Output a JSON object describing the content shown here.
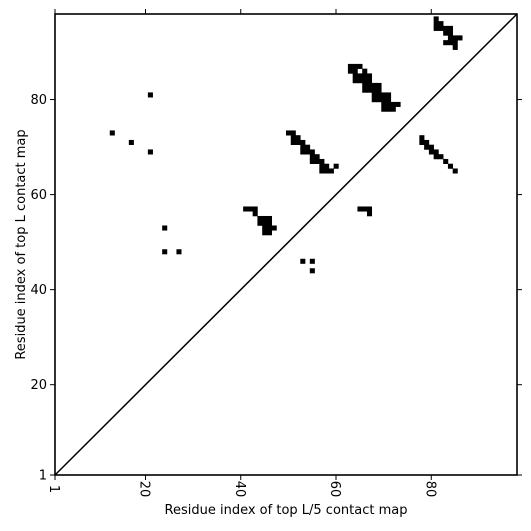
{
  "chart_data": {
    "type": "heatmap",
    "xlabel": "Residue index of top L/5 contact map",
    "ylabel": "Residue index of top L contact map",
    "xlim": [
      1,
      98
    ],
    "ylim": [
      1,
      98
    ],
    "xticks": [
      1,
      20,
      40,
      60,
      80
    ],
    "yticks": [
      1,
      20,
      40,
      60,
      80
    ],
    "diagonal": true,
    "grid": false,
    "cell_color": "#000000",
    "contacts": [
      [
        21,
        81
      ],
      [
        13,
        73
      ],
      [
        17,
        71
      ],
      [
        21,
        69
      ],
      [
        24,
        53
      ],
      [
        24,
        48
      ],
      [
        27,
        48
      ],
      [
        41,
        57
      ],
      [
        42,
        57
      ],
      [
        43,
        57
      ],
      [
        43,
        56
      ],
      [
        44,
        55
      ],
      [
        45,
        55
      ],
      [
        46,
        55
      ],
      [
        44,
        54
      ],
      [
        45,
        54
      ],
      [
        46,
        54
      ],
      [
        45,
        53
      ],
      [
        46,
        53
      ],
      [
        47,
        53
      ],
      [
        45,
        52
      ],
      [
        46,
        52
      ],
      [
        53,
        46
      ],
      [
        55,
        46
      ],
      [
        55,
        44
      ],
      [
        50,
        73
      ],
      [
        51,
        73
      ],
      [
        51,
        72
      ],
      [
        52,
        72
      ],
      [
        51,
        71
      ],
      [
        52,
        71
      ],
      [
        53,
        71
      ],
      [
        53,
        70
      ],
      [
        54,
        70
      ],
      [
        53,
        69
      ],
      [
        54,
        69
      ],
      [
        55,
        69
      ],
      [
        55,
        68
      ],
      [
        56,
        68
      ],
      [
        55,
        67
      ],
      [
        56,
        67
      ],
      [
        57,
        67
      ],
      [
        57,
        66
      ],
      [
        58,
        66
      ],
      [
        60,
        66
      ],
      [
        57,
        65
      ],
      [
        58,
        65
      ],
      [
        59,
        65
      ],
      [
        63,
        87
      ],
      [
        64,
        87
      ],
      [
        65,
        87
      ],
      [
        63,
        86
      ],
      [
        64,
        86
      ],
      [
        66,
        86
      ],
      [
        64,
        85
      ],
      [
        65,
        85
      ],
      [
        66,
        85
      ],
      [
        67,
        85
      ],
      [
        64,
        84
      ],
      [
        65,
        84
      ],
      [
        66,
        84
      ],
      [
        67,
        84
      ],
      [
        66,
        83
      ],
      [
        67,
        83
      ],
      [
        68,
        83
      ],
      [
        69,
        83
      ],
      [
        66,
        82
      ],
      [
        67,
        82
      ],
      [
        68,
        82
      ],
      [
        69,
        82
      ],
      [
        68,
        81
      ],
      [
        69,
        81
      ],
      [
        70,
        81
      ],
      [
        71,
        81
      ],
      [
        68,
        80
      ],
      [
        69,
        80
      ],
      [
        70,
        80
      ],
      [
        71,
        80
      ],
      [
        70,
        79
      ],
      [
        71,
        79
      ],
      [
        72,
        79
      ],
      [
        73,
        79
      ],
      [
        70,
        78
      ],
      [
        71,
        78
      ],
      [
        72,
        78
      ],
      [
        65,
        57
      ],
      [
        66,
        57
      ],
      [
        67,
        57
      ],
      [
        67,
        56
      ],
      [
        78,
        72
      ],
      [
        78,
        71
      ],
      [
        79,
        71
      ],
      [
        79,
        70
      ],
      [
        80,
        70
      ],
      [
        80,
        69
      ],
      [
        81,
        69
      ],
      [
        81,
        68
      ],
      [
        82,
        68
      ],
      [
        83,
        67
      ],
      [
        84,
        66
      ],
      [
        85,
        65
      ],
      [
        81,
        97
      ],
      [
        81,
        96
      ],
      [
        82,
        96
      ],
      [
        81,
        95
      ],
      [
        82,
        95
      ],
      [
        83,
        95
      ],
      [
        84,
        95
      ],
      [
        83,
        94
      ],
      [
        84,
        94
      ],
      [
        84,
        93
      ],
      [
        85,
        93
      ],
      [
        86,
        93
      ],
      [
        83,
        92
      ],
      [
        84,
        92
      ],
      [
        85,
        92
      ],
      [
        85,
        91
      ]
    ]
  }
}
